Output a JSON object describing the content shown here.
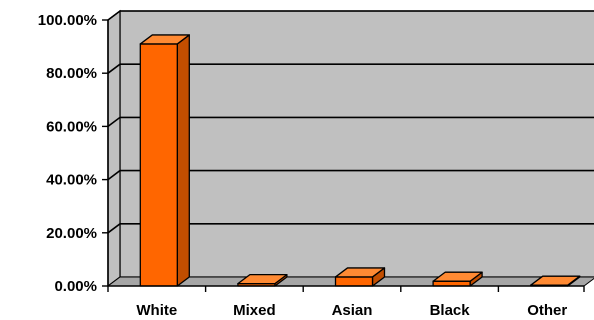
{
  "chart_data": {
    "type": "bar",
    "style": "3d",
    "categories": [
      "White",
      "Mixed",
      "Asian",
      "Black",
      "Other"
    ],
    "values": [
      91.0,
      0.9,
      3.4,
      1.8,
      0.3
    ],
    "ylim": [
      0,
      100
    ],
    "yticks": [
      "0.00%",
      "20.00%",
      "40.00%",
      "60.00%",
      "80.00%",
      "100.00%"
    ],
    "grid": true,
    "legend": "none",
    "colors": {
      "bar_front": "#ff6600",
      "bar_top": "#ff8a33",
      "bar_side": "#c24e00",
      "bar_outline": "#000000",
      "back_wall": "#c0c0c0",
      "floor": "#a6a6a6",
      "grid": "#000000"
    }
  }
}
